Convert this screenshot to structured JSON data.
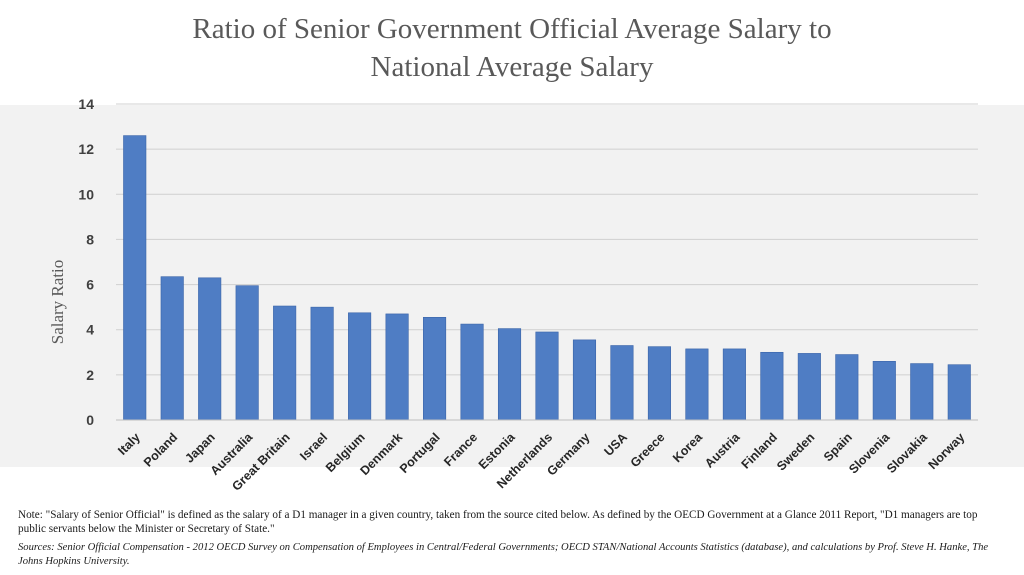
{
  "title_line1": "Ratio of Senior Government Official Average Salary to",
  "title_line2": "National Average Salary",
  "note": "Note: \"Salary of Senior Official\" is defined as the salary of a D1 manager in a given country, taken from the source cited below. As defined by the OECD Government at a Glance 2011 Report, \"D1 managers are top public servants below the Minister or Secretary of State.\"",
  "sources": "Sources: Senior Official Compensation - 2012 OECD Survey on Compensation of Employees in Central/Federal Governments; OECD STAN/National Accounts Statistics (database), and calculations by Prof. Steve H. Hanke, The Johns Hopkins University.",
  "colors": {
    "bar": "#4f7dc4",
    "bar_edge": "#3a64a8",
    "grid": "#d0d0d0"
  },
  "chart_data": {
    "type": "bar",
    "title": "Ratio of Senior Government Official Average Salary to National Average Salary",
    "xlabel": "",
    "ylabel": "Salary Ratio",
    "ylim": [
      0,
      14
    ],
    "yticks": [
      0,
      2,
      4,
      6,
      8,
      10,
      12,
      14
    ],
    "grid": true,
    "categories": [
      "Italy",
      "Poland",
      "Japan",
      "Australia",
      "Great Britain",
      "Israel",
      "Belgium",
      "Denmark",
      "Portugal",
      "France",
      "Estonia",
      "Netherlands",
      "Germany",
      "USA",
      "Greece",
      "Korea",
      "Austria",
      "Finland",
      "Sweden",
      "Spain",
      "Slovenia",
      "Slovakia",
      "Norway"
    ],
    "values": [
      12.6,
      6.35,
      6.3,
      5.95,
      5.05,
      5.0,
      4.75,
      4.7,
      4.55,
      4.25,
      4.05,
      3.9,
      3.55,
      3.3,
      3.25,
      3.15,
      3.15,
      3.0,
      2.95,
      2.9,
      2.6,
      2.5,
      2.45
    ]
  }
}
